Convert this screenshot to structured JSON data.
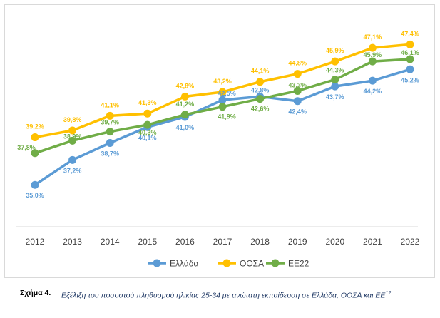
{
  "chart_data": {
    "type": "line",
    "categories": [
      "2012",
      "2013",
      "2014",
      "2015",
      "2016",
      "2017",
      "2018",
      "2019",
      "2020",
      "2021",
      "2022"
    ],
    "series": [
      {
        "name": "Ελλάδα",
        "color": "#5b9bd5",
        "values": [
          35.0,
          37.2,
          38.7,
          40.1,
          41.0,
          42.5,
          42.8,
          42.4,
          43.7,
          44.2,
          45.2
        ],
        "labels": [
          "35,0%",
          "37,2%",
          "38,7%",
          "40,1%",
          "41,0%",
          "42,5%",
          "42,8%",
          "42,4%",
          "43,7%",
          "44,2%",
          "45,2%"
        ]
      },
      {
        "name": "ΟΟΣΑ",
        "color": "#ffc000",
        "values": [
          39.2,
          39.8,
          41.1,
          41.3,
          42.8,
          43.2,
          44.1,
          44.8,
          45.9,
          47.1,
          47.4
        ],
        "labels": [
          "39,2%",
          "39,8%",
          "41,1%",
          "41,3%",
          "42,8%",
          "43,2%",
          "44,1%",
          "44,8%",
          "45,9%",
          "47,1%",
          "47,4%"
        ]
      },
      {
        "name": "ΕΕ22",
        "color": "#70ad47",
        "values": [
          37.8,
          38.9,
          39.7,
          40.3,
          41.2,
          41.9,
          42.6,
          43.3,
          44.3,
          45.9,
          46.1
        ],
        "labels": [
          "37,8%",
          "38,9%",
          "39,7%",
          "40,3%",
          "41,2%",
          "41,9%",
          "42,6%",
          "43,3%",
          "44,3%",
          "45,9%",
          "46,1%"
        ]
      }
    ],
    "ylim": [
      31.3,
      49.5
    ],
    "grid": false,
    "legend": "bottom",
    "title": "",
    "xlabel": "",
    "ylabel": ""
  },
  "caption": {
    "label": "Σχήμα 4.",
    "text": "Εξέλιξη του ποσοστού πληθυσμού ηλικίας 25-34 με ανώτατη εκπαίδευση σε Ελλάδα, ΟΟΣΑ και ΕΕ",
    "superscript": "12"
  }
}
